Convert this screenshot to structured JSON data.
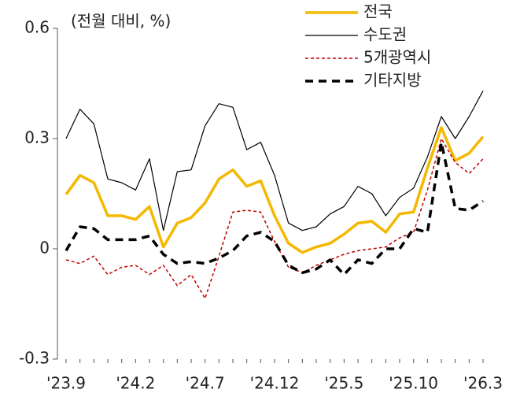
{
  "chart_data": {
    "type": "line",
    "y_axis_label": "(전월 대비, %)",
    "categories": [
      "'23.9",
      null,
      null,
      null,
      null,
      "'24.2",
      null,
      null,
      null,
      null,
      "'24.7",
      null,
      null,
      null,
      null,
      "'24.12",
      null,
      null,
      null,
      null,
      "'25.5",
      null,
      null,
      null,
      null,
      "'25.10",
      null,
      null,
      null,
      null,
      "'26.3"
    ],
    "series": [
      {
        "name": "전국",
        "color": "#f5b800",
        "style": "solid",
        "width": 3.5,
        "values": [
          0.148,
          0.2,
          0.18,
          0.09,
          0.09,
          0.08,
          0.115,
          0.005,
          0.07,
          0.085,
          0.125,
          0.19,
          0.215,
          0.17,
          0.185,
          0.09,
          0.015,
          -0.01,
          0.005,
          0.015,
          0.04,
          0.07,
          0.075,
          0.045,
          0.095,
          0.1,
          0.22,
          0.33,
          0.24,
          0.26,
          0.305
        ]
      },
      {
        "name": "수도권",
        "color": "#000000",
        "style": "solid",
        "width": 1.2,
        "values": [
          0.3,
          0.38,
          0.34,
          0.19,
          0.18,
          0.16,
          0.245,
          0.05,
          0.21,
          0.215,
          0.335,
          0.395,
          0.385,
          0.27,
          0.29,
          0.2,
          0.07,
          0.05,
          0.06,
          0.095,
          0.115,
          0.17,
          0.15,
          0.09,
          0.14,
          0.165,
          0.25,
          0.36,
          0.3,
          0.36,
          0.43
        ]
      },
      {
        "name": "5개광역시",
        "color": "#c00000",
        "style": "dashed",
        "width": 1.5,
        "values": [
          -0.03,
          -0.04,
          -0.02,
          -0.07,
          -0.05,
          -0.045,
          -0.07,
          -0.045,
          -0.1,
          -0.07,
          -0.135,
          -0.02,
          0.1,
          0.105,
          0.1,
          0.02,
          -0.05,
          -0.065,
          -0.045,
          -0.03,
          -0.015,
          -0.005,
          0.0,
          0.005,
          0.03,
          0.045,
          0.16,
          0.3,
          0.235,
          0.205,
          0.245
        ]
      },
      {
        "name": "기타지방",
        "color": "#000000",
        "style": "dashed-thick",
        "width": 3.5,
        "values": [
          -0.005,
          0.06,
          0.055,
          0.025,
          0.025,
          0.025,
          0.035,
          -0.015,
          -0.04,
          -0.035,
          -0.04,
          -0.025,
          -0.005,
          0.035,
          0.045,
          0.02,
          -0.045,
          -0.065,
          -0.055,
          -0.03,
          -0.07,
          -0.03,
          -0.04,
          0.0,
          0.0,
          0.055,
          0.045,
          0.29,
          0.11,
          0.105,
          0.13
        ]
      }
    ],
    "ylim": [
      -0.3,
      0.6
    ],
    "yticks": [
      0.6,
      0.3,
      0,
      -0.3
    ],
    "legend": "top-right"
  }
}
